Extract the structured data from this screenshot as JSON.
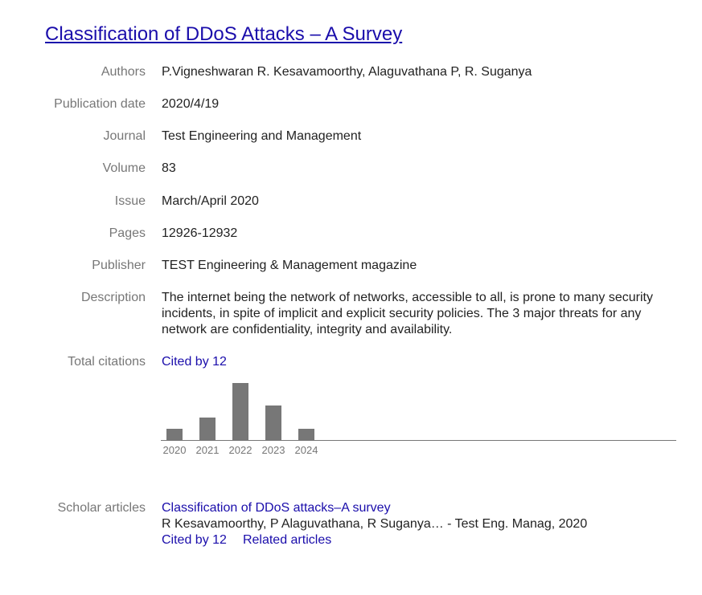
{
  "article": {
    "title": "Classification of DDoS Attacks – A Survey"
  },
  "fields": {
    "authors": {
      "label": "Authors",
      "value": "P.Vigneshwaran R. Kesavamoorthy, Alaguvathana P, R. Suganya"
    },
    "publication_date": {
      "label": "Publication date",
      "value": "2020/4/19"
    },
    "journal": {
      "label": "Journal",
      "value": "Test Engineering and Management"
    },
    "volume": {
      "label": "Volume",
      "value": "83"
    },
    "issue": {
      "label": "Issue",
      "value": "March/April 2020"
    },
    "pages": {
      "label": "Pages",
      "value": "12926-12932"
    },
    "publisher": {
      "label": "Publisher",
      "value": "TEST Engineering & Management magazine"
    },
    "description": {
      "label": "Description",
      "value": "The internet being the network of networks, accessible to all, is prone to many security incidents, in spite of implicit and explicit security policies. The 3 major threats for any network are confidentiality, integrity and availability."
    },
    "total_citations": {
      "label": "Total citations",
      "value": "Cited by 12"
    },
    "scholar_articles": {
      "label": "Scholar articles",
      "title": "Classification of DDoS attacks–A survey",
      "authors": "R Kesavamoorthy, P Alaguvathana, R Suganya… - Test Eng. Manag, 2020",
      "cited_by": "Cited by 12",
      "related": "Related articles"
    }
  },
  "chart_data": {
    "type": "bar",
    "categories": [
      "2020",
      "2021",
      "2022",
      "2023",
      "2024"
    ],
    "values": [
      1,
      2,
      5,
      3,
      1
    ],
    "title": "",
    "xlabel": "",
    "ylabel": "",
    "ylim": [
      0,
      5
    ],
    "grid": false,
    "bar_color": "#777777",
    "axis_color": "#777777"
  },
  "colors": {
    "link": "#1a0dab",
    "label": "#777777",
    "text": "#222222"
  }
}
